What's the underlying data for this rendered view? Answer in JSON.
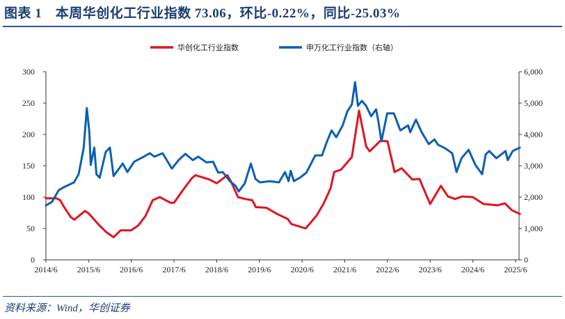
{
  "header": {
    "title": "图表 1　本周华创化工行业指数 73.06，环比-0.22%，同比-25.03%"
  },
  "footer": {
    "source": "资料来源：Wind，华创证券"
  },
  "chart_data": {
    "type": "line",
    "title": "",
    "xlabel": "",
    "ylabel": "",
    "x_ticks": [
      "2014/6",
      "2015/6",
      "2016/6",
      "2017/6",
      "2018/6",
      "2019/6",
      "2020/6",
      "2021/6",
      "2022/6",
      "2023/6",
      "2024/6",
      "2025/6"
    ],
    "y_left": {
      "lim": [
        0,
        300
      ],
      "ticks": [
        "0",
        "50",
        "100",
        "150",
        "200",
        "250",
        "300"
      ],
      "values": [
        0,
        50,
        100,
        150,
        200,
        250,
        300
      ]
    },
    "y_right": {
      "lim": [
        0,
        6000
      ],
      "ticks": [
        "0",
        "1,000",
        "2,000",
        "3,000",
        "4,000",
        "5,000",
        "6,000"
      ],
      "values": [
        0,
        1000,
        2000,
        3000,
        4000,
        5000,
        6000
      ]
    },
    "grid": false,
    "legend_position": "top-center",
    "series": [
      {
        "name": "华创化工行业指数",
        "axis": "left",
        "color": "#e0141e",
        "points": [
          [
            "2014-06-01",
            98
          ],
          [
            "2014-09-01",
            98
          ],
          [
            "2014-10-01",
            95
          ],
          [
            "2014-11-01",
            85
          ],
          [
            "2015-01-01",
            68
          ],
          [
            "2015-02-01",
            64
          ],
          [
            "2015-05-01",
            78
          ],
          [
            "2015-06-01",
            74
          ],
          [
            "2015-09-01",
            55
          ],
          [
            "2015-11-01",
            44
          ],
          [
            "2016-01-01",
            36
          ],
          [
            "2016-03-01",
            47
          ],
          [
            "2016-06-01",
            47
          ],
          [
            "2016-08-01",
            55
          ],
          [
            "2016-10-01",
            70
          ],
          [
            "2016-12-01",
            95
          ],
          [
            "2017-02-01",
            100
          ],
          [
            "2017-05-01",
            91
          ],
          [
            "2017-06-01",
            91
          ],
          [
            "2017-09-01",
            115
          ],
          [
            "2017-11-01",
            130
          ],
          [
            "2017-12-01",
            135
          ],
          [
            "2018-04-01",
            128
          ],
          [
            "2018-06-01",
            122
          ],
          [
            "2018-09-01",
            135
          ],
          [
            "2018-10-01",
            125
          ],
          [
            "2018-12-01",
            100
          ],
          [
            "2019-02-01",
            97
          ],
          [
            "2019-04-01",
            95
          ],
          [
            "2019-05-01",
            84
          ],
          [
            "2019-08-01",
            83
          ],
          [
            "2019-11-01",
            73
          ],
          [
            "2020-02-01",
            65
          ],
          [
            "2020-03-01",
            57
          ],
          [
            "2020-07-01",
            50
          ],
          [
            "2020-10-01",
            70
          ],
          [
            "2020-12-01",
            89
          ],
          [
            "2021-02-01",
            114
          ],
          [
            "2021-03-01",
            140
          ],
          [
            "2021-05-01",
            144
          ],
          [
            "2021-08-01",
            164
          ],
          [
            "2021-10-01",
            238
          ],
          [
            "2021-12-01",
            181
          ],
          [
            "2022-01-01",
            173
          ],
          [
            "2022-04-01",
            190
          ],
          [
            "2022-06-01",
            189
          ],
          [
            "2022-08-01",
            140
          ],
          [
            "2022-10-01",
            146
          ],
          [
            "2023-01-01",
            128
          ],
          [
            "2023-03-01",
            129
          ],
          [
            "2023-06-01",
            89
          ],
          [
            "2023-09-01",
            118
          ],
          [
            "2023-11-01",
            101
          ],
          [
            "2024-01-01",
            97
          ],
          [
            "2024-03-01",
            101
          ],
          [
            "2024-06-01",
            100
          ],
          [
            "2024-09-01",
            89
          ],
          [
            "2025-01-01",
            87
          ],
          [
            "2025-03-01",
            90
          ],
          [
            "2025-05-01",
            79
          ],
          [
            "2025-07-07",
            73.06
          ]
        ]
      },
      {
        "name": "申万化工行业指数（右轴）",
        "axis": "right",
        "color": "#0a5fb4",
        "points": [
          [
            "2014-06-01",
            1733
          ],
          [
            "2014-07-22",
            1850
          ],
          [
            "2014-09-19",
            2220
          ],
          [
            "2014-11-10",
            2330
          ],
          [
            "2015-01-28",
            2470
          ],
          [
            "2015-03-07",
            2730
          ],
          [
            "2015-04-19",
            3560
          ],
          [
            "2015-05-16",
            4840
          ],
          [
            "2015-06-07",
            4070
          ],
          [
            "2015-06-19",
            3030
          ],
          [
            "2015-07-19",
            3580
          ],
          [
            "2015-08-07",
            2730
          ],
          [
            "2015-09-04",
            2620
          ],
          [
            "2015-10-25",
            3440
          ],
          [
            "2015-12-01",
            3580
          ],
          [
            "2016-01-01",
            2670
          ],
          [
            "2016-03-19",
            3070
          ],
          [
            "2016-04-28",
            2800
          ],
          [
            "2016-06-25",
            3130
          ],
          [
            "2016-09-16",
            3290
          ],
          [
            "2016-11-07",
            3400
          ],
          [
            "2016-12-16",
            3290
          ],
          [
            "2017-02-25",
            3400
          ],
          [
            "2017-05-13",
            2910
          ],
          [
            "2017-07-10",
            3180
          ],
          [
            "2017-09-07",
            3380
          ],
          [
            "2017-11-10",
            3180
          ],
          [
            "2017-12-25",
            3290
          ],
          [
            "2018-03-04",
            3110
          ],
          [
            "2018-05-01",
            3130
          ],
          [
            "2018-06-13",
            2780
          ],
          [
            "2018-07-22",
            2800
          ],
          [
            "2018-09-22",
            2510
          ],
          [
            "2018-11-10",
            2360
          ],
          [
            "2018-12-07",
            2180
          ],
          [
            "2019-01-28",
            2440
          ],
          [
            "2019-03-19",
            3070
          ],
          [
            "2019-04-28",
            2580
          ],
          [
            "2019-06-07",
            2470
          ],
          [
            "2019-08-28",
            2510
          ],
          [
            "2019-11-16",
            2470
          ],
          [
            "2020-01-07",
            2800
          ],
          [
            "2020-02-07",
            2510
          ],
          [
            "2020-02-25",
            2840
          ],
          [
            "2020-03-22",
            2510
          ],
          [
            "2020-05-13",
            2620
          ],
          [
            "2020-07-07",
            2780
          ],
          [
            "2020-09-22",
            3330
          ],
          [
            "2020-11-19",
            3330
          ],
          [
            "2021-01-01",
            3780
          ],
          [
            "2021-02-10",
            4130
          ],
          [
            "2021-03-19",
            3910
          ],
          [
            "2021-05-13",
            4290
          ],
          [
            "2021-06-22",
            4730
          ],
          [
            "2021-08-01",
            4960
          ],
          [
            "2021-08-28",
            5670
          ],
          [
            "2021-09-22",
            4910
          ],
          [
            "2021-10-25",
            5070
          ],
          [
            "2021-12-01",
            4910
          ],
          [
            "2022-01-13",
            4580
          ],
          [
            "2022-02-25",
            4800
          ],
          [
            "2022-03-13",
            4440
          ],
          [
            "2022-04-10",
            3780
          ],
          [
            "2022-05-28",
            4670
          ],
          [
            "2022-07-25",
            4670
          ],
          [
            "2022-09-19",
            4130
          ],
          [
            "2022-11-25",
            4290
          ],
          [
            "2022-12-13",
            4070
          ],
          [
            "2023-02-01",
            4470
          ],
          [
            "2023-03-19",
            4070
          ],
          [
            "2023-05-19",
            3690
          ],
          [
            "2023-07-07",
            3840
          ],
          [
            "2023-08-07",
            3670
          ],
          [
            "2023-10-07",
            3560
          ],
          [
            "2023-12-07",
            3400
          ],
          [
            "2024-01-13",
            2800
          ],
          [
            "2024-02-25",
            3240
          ],
          [
            "2024-04-25",
            3510
          ],
          [
            "2024-06-22",
            3030
          ],
          [
            "2024-08-19",
            2730
          ],
          [
            "2024-09-19",
            3360
          ],
          [
            "2024-10-19",
            3470
          ],
          [
            "2024-12-19",
            3240
          ],
          [
            "2025-03-07",
            3470
          ],
          [
            "2025-03-25",
            3180
          ],
          [
            "2025-05-07",
            3470
          ],
          [
            "2025-07-07",
            3580
          ]
        ]
      }
    ]
  }
}
